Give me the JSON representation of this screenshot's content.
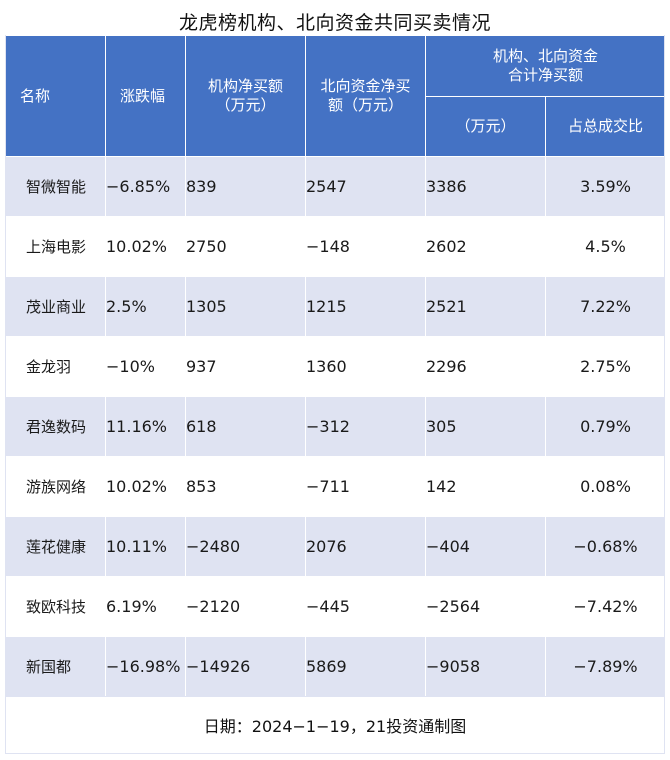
{
  "title": "龙虎榜机构、北向资金共同买卖情况",
  "header": {
    "name": "名称",
    "change": "涨跌幅",
    "inst_line1": "机构净买额",
    "inst_line2": "（万元）",
    "north_line1": "北向资金净买",
    "north_line2": "额（万元）",
    "combined_line1": "机构、北向资金",
    "combined_line2": "合计净买额",
    "combined_amount": "（万元）",
    "combined_share": "占总成交比"
  },
  "rows": [
    {
      "name": "智微智能",
      "change": "−6.85%",
      "inst": "839",
      "north": "2547",
      "total": "3386",
      "share": "3.59%"
    },
    {
      "name": "上海电影",
      "change": "10.02%",
      "inst": "2750",
      "north": "−148",
      "total": "2602",
      "share": "4.5%"
    },
    {
      "name": "茂业商业",
      "change": "2.5%",
      "inst": "1305",
      "north": "1215",
      "total": "2521",
      "share": "7.22%"
    },
    {
      "name": "金龙羽",
      "change": "−10%",
      "inst": "937",
      "north": "1360",
      "total": "2296",
      "share": "2.75%"
    },
    {
      "name": "君逸数码",
      "change": "11.16%",
      "inst": "618",
      "north": "−312",
      "total": "305",
      "share": "0.79%"
    },
    {
      "name": "游族网络",
      "change": "10.02%",
      "inst": "853",
      "north": "−711",
      "total": "142",
      "share": "0.08%"
    },
    {
      "name": "莲花健康",
      "change": "10.11%",
      "inst": "−2480",
      "north": "2076",
      "total": "−404",
      "share": "−0.68%"
    },
    {
      "name": "致欧科技",
      "change": "6.19%",
      "inst": "−2120",
      "north": "−445",
      "total": "−2564",
      "share": "−7.42%"
    },
    {
      "name": "新国都",
      "change": "−16.98%",
      "inst": "−14926",
      "north": "5869",
      "total": "−9058",
      "share": "−7.89%"
    }
  ],
  "footer": "日期：2024−1−19，21投资通制图",
  "colors": {
    "header_bg": "#4472c4",
    "row_stripe": "#dfe3f2",
    "row_plain": "#ffffff"
  }
}
